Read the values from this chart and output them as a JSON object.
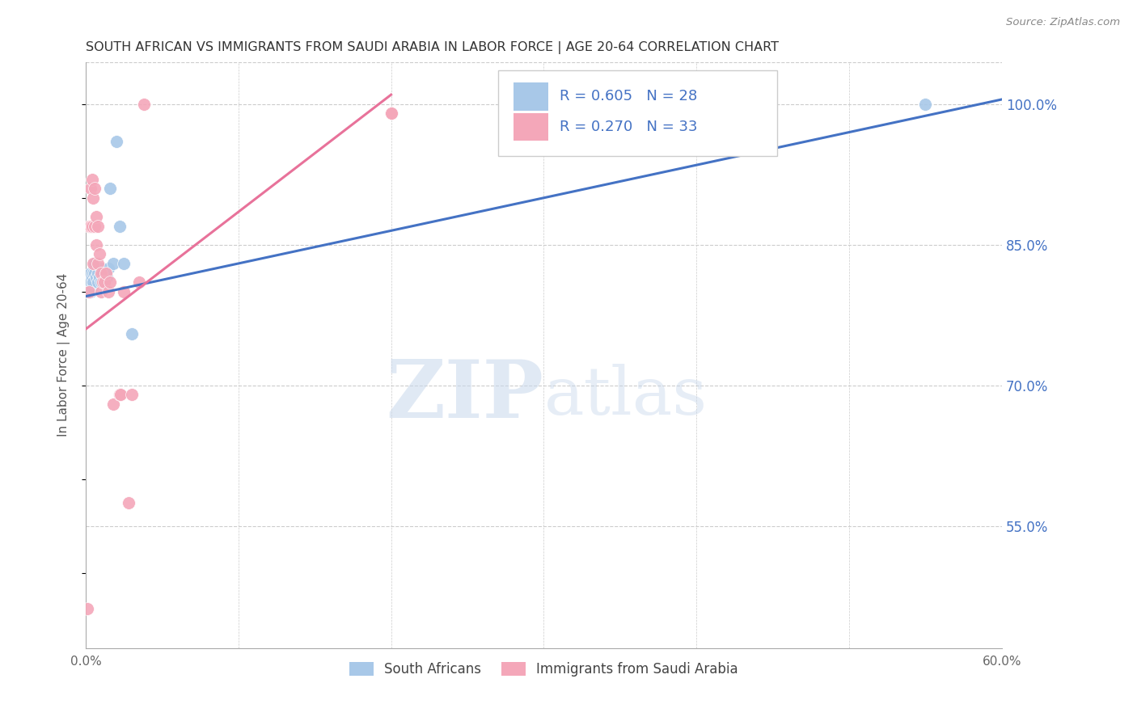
{
  "title": "SOUTH AFRICAN VS IMMIGRANTS FROM SAUDI ARABIA IN LABOR FORCE | AGE 20-64 CORRELATION CHART",
  "source": "Source: ZipAtlas.com",
  "ylabel": "In Labor Force | Age 20-64",
  "xlim": [
    0.0,
    0.6
  ],
  "ylim": [
    0.42,
    1.045
  ],
  "xticks": [
    0.0,
    0.1,
    0.2,
    0.3,
    0.4,
    0.5,
    0.6
  ],
  "xticklabels": [
    "0.0%",
    "",
    "",
    "",
    "",
    "",
    "60.0%"
  ],
  "yticks_right": [
    1.0,
    0.85,
    0.7,
    0.55
  ],
  "ytick_labels_right": [
    "100.0%",
    "85.0%",
    "70.0%",
    "55.0%"
  ],
  "blue_color": "#A8C8E8",
  "pink_color": "#F4A7B9",
  "blue_line_color": "#4472C4",
  "pink_line_color": "#E8729A",
  "legend_label_blue": "South Africans",
  "legend_label_pink": "Immigrants from Saudi Arabia",
  "blue_scatter_x": [
    0.001,
    0.002,
    0.003,
    0.003,
    0.004,
    0.004,
    0.005,
    0.005,
    0.006,
    0.006,
    0.007,
    0.008,
    0.008,
    0.009,
    0.01,
    0.01,
    0.011,
    0.012,
    0.013,
    0.014,
    0.015,
    0.016,
    0.018,
    0.02,
    0.022,
    0.025,
    0.03,
    0.55
  ],
  "blue_scatter_y": [
    0.8,
    0.81,
    0.82,
    0.8,
    0.815,
    0.805,
    0.82,
    0.81,
    0.83,
    0.82,
    0.815,
    0.81,
    0.82,
    0.815,
    0.825,
    0.81,
    0.82,
    0.815,
    0.82,
    0.815,
    0.825,
    0.91,
    0.83,
    0.96,
    0.87,
    0.83,
    0.755,
    1.0
  ],
  "pink_scatter_x": [
    0.001,
    0.002,
    0.002,
    0.003,
    0.003,
    0.004,
    0.004,
    0.005,
    0.005,
    0.006,
    0.006,
    0.007,
    0.007,
    0.008,
    0.008,
    0.009,
    0.01,
    0.01,
    0.011,
    0.012,
    0.013,
    0.015,
    0.016,
    0.018,
    0.022,
    0.023,
    0.025,
    0.028,
    0.03,
    0.035,
    0.038,
    0.2,
    0.2
  ],
  "pink_scatter_y": [
    0.462,
    0.8,
    0.87,
    0.91,
    0.87,
    0.92,
    0.87,
    0.9,
    0.83,
    0.91,
    0.87,
    0.88,
    0.85,
    0.87,
    0.83,
    0.84,
    0.82,
    0.8,
    0.81,
    0.81,
    0.82,
    0.8,
    0.81,
    0.68,
    0.69,
    0.69,
    0.8,
    0.575,
    0.69,
    0.81,
    1.0,
    0.99,
    0.99
  ],
  "blue_line_x0": 0.0,
  "blue_line_y0": 0.795,
  "blue_line_x1": 0.6,
  "blue_line_y1": 1.005,
  "pink_line_x0": 0.0,
  "pink_line_y0": 0.76,
  "pink_line_x1": 0.2,
  "pink_line_y1": 1.01,
  "grid_color": "#CCCCCC",
  "title_color": "#333333",
  "right_tick_color": "#4472C4",
  "legend_text_color": "#4472C4",
  "watermark_zip_color": "#D8E8F4",
  "watermark_atlas_color": "#C8DCF0"
}
